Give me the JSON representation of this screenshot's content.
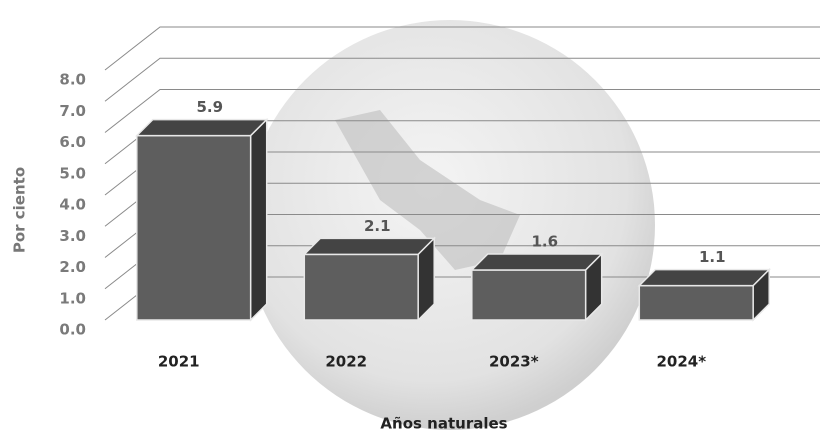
{
  "chart_data": {
    "type": "bar3d",
    "categories": [
      "2021",
      "2022",
      "2023*",
      "2024*"
    ],
    "values": [
      5.9,
      2.1,
      1.6,
      1.1
    ],
    "ylim": [
      0,
      8
    ],
    "yticks": [
      {
        "value": 0,
        "label": "0.0"
      },
      {
        "value": 1,
        "label": "1.0"
      },
      {
        "value": 2,
        "label": "2.0"
      },
      {
        "value": 3,
        "label": "3.0"
      },
      {
        "value": 4,
        "label": "4.0"
      },
      {
        "value": 5,
        "label": "5.0"
      },
      {
        "value": 6,
        "label": "6.0"
      },
      {
        "value": 7,
        "label": "7.0"
      },
      {
        "value": 8,
        "label": "8.0"
      }
    ],
    "y_label": "Por ciento",
    "x_label": "Años naturales",
    "grid": true,
    "color": "#5e5e5e"
  }
}
